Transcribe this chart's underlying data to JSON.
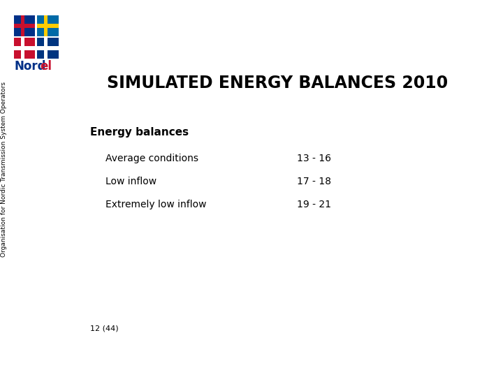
{
  "title": "SIMULATED ENERGY BALANCES 2010",
  "section_header": "Energy balances",
  "items": [
    {
      "label": "Average conditions",
      "pages": "13 - 16"
    },
    {
      "label": "Low inflow",
      "pages": "17 - 18"
    },
    {
      "label": "Extremely low inflow",
      "pages": "19 - 21"
    }
  ],
  "footer": "12 (44)",
  "sidebar_text": "Organisation for Nordic Transmission System Operators",
  "bg_color": "#ffffff",
  "text_color": "#000000",
  "title_fontsize": 17,
  "header_fontsize": 11,
  "item_fontsize": 10,
  "footer_fontsize": 8,
  "sidebar_fontsize": 6.5,
  "nordel_blue": "#003087",
  "nordel_red": "#c8102e",
  "flag_colors": {
    "norway_bg": "#003087",
    "norway_cross": "#c8102e",
    "sweden_bg": "#006aa7",
    "sweden_cross": "#fecc02",
    "denmark_bg": "#c8102e",
    "denmark_cross": "#ffffff",
    "finland_bg": "#003580",
    "finland_cross": "#ffffff"
  }
}
